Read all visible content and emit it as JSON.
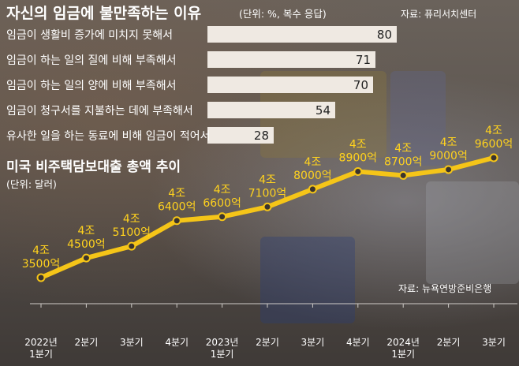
{
  "title": "자신의 임금에 불만족하는 이유",
  "title_unit": "(단위: %, 복수 응답)",
  "source_top": "자료: 퓨리서치센터",
  "line_title": "미국 비주택담보대출 총액 추이",
  "line_unit": "(단위: 달러)",
  "source_bottom": "자료: 뉴욕연방준비은행",
  "colors": {
    "line": "#f5c518",
    "point_label": "#ffd21e",
    "bar": "#efe9e2"
  },
  "chart_data": [
    {
      "type": "bar",
      "orientation": "horizontal",
      "categories": [
        "임금이 생활비 증가에 미치지 못해서",
        "임금이 하는 일의 질에 비해 부족해서",
        "임금이 하는 일의 양에 비해 부족해서",
        "임금이 청구서를 지불하는 데에 부족해서",
        "유사한 일을 하는 동료에 비해 임금이 적어서"
      ],
      "values": [
        80,
        71,
        70,
        54,
        28
      ],
      "value_labels": [
        "80",
        "71",
        "70",
        "54",
        "28"
      ]
    },
    {
      "type": "line",
      "x": [
        "2022년 1분기",
        "2분기",
        "3분기",
        "4분기",
        "2023년 1분기",
        "2분기",
        "3분기",
        "4분기",
        "2024년 1분기",
        "2분기",
        "3분기"
      ],
      "x_tick_lines": [
        [
          "2022년",
          "1분기"
        ],
        [
          "2분기"
        ],
        [
          "3분기"
        ],
        [
          "4분기"
        ],
        [
          "2023년",
          "1분기"
        ],
        [
          "2분기"
        ],
        [
          "3분기"
        ],
        [
          "4분기"
        ],
        [
          "2024년",
          "1분기"
        ],
        [
          "2분기"
        ],
        [
          "3분기"
        ]
      ],
      "values": [
        35000,
        45000,
        51000,
        64000,
        66000,
        71000,
        80000,
        89000,
        87000,
        90000,
        96000
      ],
      "value_unit": "억 달러",
      "point_labels": [
        [
          "4조",
          "3500억"
        ],
        [
          "4조",
          "4500억"
        ],
        [
          "4조",
          "5100억"
        ],
        [
          "4조",
          "6400억"
        ],
        [
          "4조",
          "6600억"
        ],
        [
          "4조",
          "7100억"
        ],
        [
          "4조",
          "8000억"
        ],
        [
          "4조",
          "8900억"
        ],
        [
          "4조",
          "8700억"
        ],
        [
          "4조",
          "9000억"
        ],
        [
          "4조",
          "9600억"
        ]
      ]
    }
  ]
}
